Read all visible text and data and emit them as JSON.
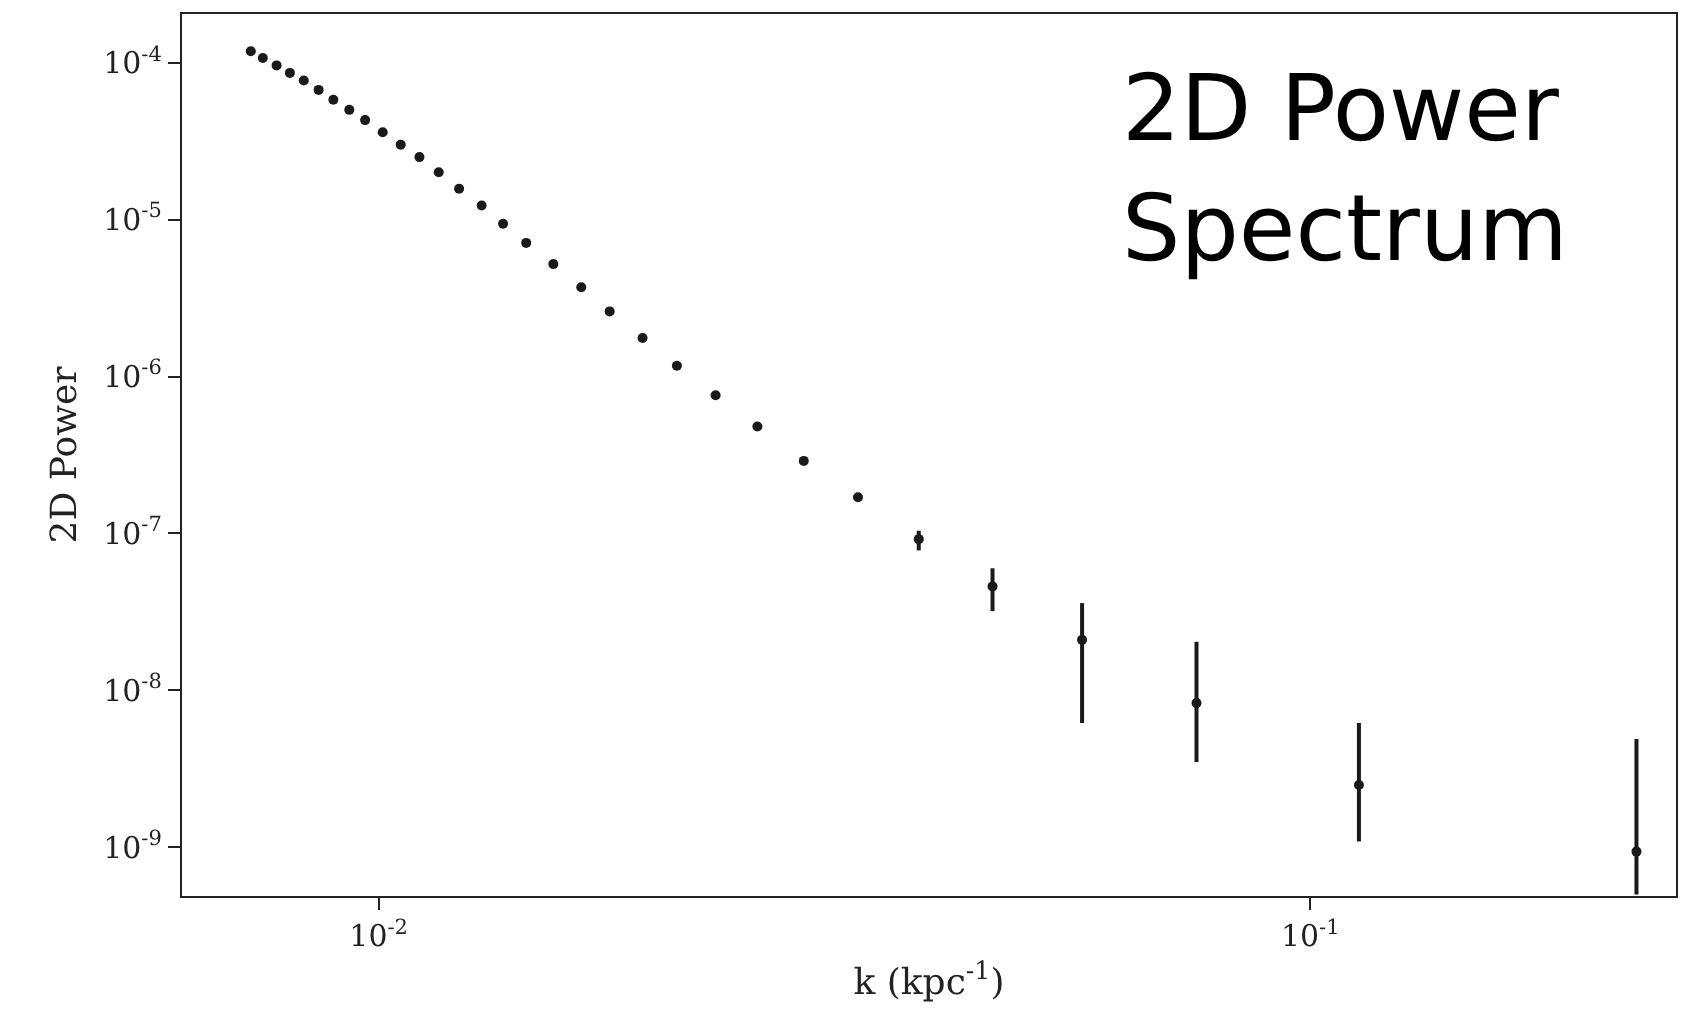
{
  "chart_data": {
    "type": "scatter",
    "xlabel": "k (kpc$^{-1}$)",
    "ylabel": "2D Power",
    "annotations": [
      "2D Power\nSpectrum"
    ],
    "log": "xy",
    "grid": false,
    "marker": "circle",
    "xlim": [
      0.00615,
      0.247
    ],
    "ylim": [
      4.9e-10,
      0.000204
    ],
    "xticks": [
      {
        "value": 0.01,
        "label": "10$^{-2}$"
      },
      {
        "value": 0.1,
        "label": "10$^{-1}$"
      }
    ],
    "yticks": [
      {
        "value": 1e-09,
        "label": "10$^{-9}$"
      },
      {
        "value": 1e-08,
        "label": "10$^{-8}$"
      },
      {
        "value": 1e-07,
        "label": "10$^{-7}$"
      },
      {
        "value": 1e-06,
        "label": "10$^{-6}$"
      },
      {
        "value": 1e-05,
        "label": "10$^{-5}$"
      },
      {
        "value": 0.0001,
        "label": "10$^{-4}$"
      }
    ],
    "series": [
      {
        "color": "#1a1a1a",
        "x": [
          0.00729,
          0.00751,
          0.00777,
          0.00803,
          0.00831,
          0.00862,
          0.00894,
          0.0093,
          0.00967,
          0.0101,
          0.01056,
          0.01106,
          0.0116,
          0.0122,
          0.0129,
          0.0136,
          0.0144,
          0.0154,
          0.0165,
          0.0177,
          0.0192,
          0.0209,
          0.023,
          0.0255,
          0.0286,
          0.0327,
          0.038,
          0.0456,
          0.0569,
          0.0755,
          0.1128,
          0.224
        ],
        "values": [
          0.000118,
          0.000107,
          9.6e-05,
          8.6e-05,
          7.7e-05,
          6.7e-05,
          5.8e-05,
          5e-05,
          4.3e-05,
          3.6e-05,
          3e-05,
          2.5e-05,
          2e-05,
          1.57e-05,
          1.23e-05,
          9.4e-06,
          7.1e-06,
          5.2e-06,
          3.7e-06,
          2.6e-06,
          1.76e-06,
          1.17e-06,
          7.6e-07,
          4.8e-07,
          2.9e-07,
          1.7e-07,
          9.2e-08,
          4.6e-08,
          2.1e-08,
          8.3e-09,
          2.5e-09,
          9.4e-10
        ],
        "errors": [
          null,
          null,
          null,
          null,
          null,
          null,
          null,
          null,
          null,
          null,
          null,
          null,
          null,
          null,
          null,
          null,
          null,
          null,
          null,
          null,
          null,
          null,
          null,
          null,
          null,
          null,
          [
            7.8e-08,
            1.04e-07
          ],
          [
            3.2e-08,
            6e-08
          ],
          [
            6.2e-09,
            3.6e-08
          ],
          [
            3.5e-09,
            2.04e-08
          ],
          [
            1.09e-09,
            6.2e-09
          ],
          [
            5e-10,
            4.9e-09
          ]
        ]
      }
    ]
  }
}
